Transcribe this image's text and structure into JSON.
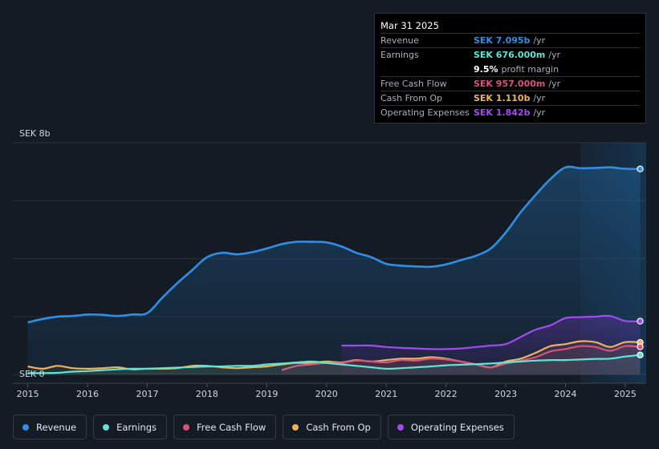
{
  "tooltip": {
    "date": "Mar 31 2025",
    "rows": [
      {
        "label": "Revenue",
        "value": "SEK 7.095b",
        "unit": "/yr",
        "color": "#2f8fe8"
      },
      {
        "label": "Earnings",
        "value": "SEK 676.000m",
        "unit": "/yr",
        "color": "#5ee5d6"
      },
      {
        "label": "",
        "value": "9.5%",
        "unit": "profit margin",
        "color": "#ffffff"
      },
      {
        "label": "Free Cash Flow",
        "value": "SEK 957.000m",
        "unit": "/yr",
        "color": "#d9527c"
      },
      {
        "label": "Cash From Op",
        "value": "SEK 1.110b",
        "unit": "/yr",
        "color": "#efb25d"
      },
      {
        "label": "Operating Expenses",
        "value": "SEK 1.842b",
        "unit": "/yr",
        "color": "#a14bf0"
      }
    ]
  },
  "legend": [
    {
      "label": "Revenue",
      "color": "#2f8fe8"
    },
    {
      "label": "Earnings",
      "color": "#5ee5d6"
    },
    {
      "label": "Free Cash Flow",
      "color": "#d9527c"
    },
    {
      "label": "Cash From Op",
      "color": "#efb25d"
    },
    {
      "label": "Operating Expenses",
      "color": "#a14bf0"
    }
  ],
  "chart_data": {
    "type": "area",
    "title": "",
    "xlabel": "",
    "ylabel": "",
    "y_top_label": "SEK 8b",
    "y_zero_label": "SEK 0",
    "xlim": [
      2014.75,
      2025.35
    ],
    "ylim": [
      -0.3,
      8
    ],
    "x_ticks": [
      2015,
      2016,
      2017,
      2018,
      2019,
      2020,
      2021,
      2022,
      2023,
      2024,
      2025
    ],
    "x_tick_labels": [
      "2015",
      "2016",
      "2017",
      "2018",
      "2019",
      "2020",
      "2021",
      "2022",
      "2023",
      "2024",
      "2025"
    ],
    "forecast_start": 2024.25,
    "series": [
      {
        "name": "Revenue",
        "color": "#2f8fe8",
        "x": [
          2015.0,
          2015.25,
          2015.5,
          2015.75,
          2016.0,
          2016.25,
          2016.5,
          2016.75,
          2017.0,
          2017.25,
          2017.5,
          2017.75,
          2018.0,
          2018.25,
          2018.5,
          2018.75,
          2019.0,
          2019.25,
          2019.5,
          2019.75,
          2020.0,
          2020.25,
          2020.5,
          2020.75,
          2021.0,
          2021.25,
          2021.5,
          2021.75,
          2022.0,
          2022.25,
          2022.5,
          2022.75,
          2023.0,
          2023.25,
          2023.5,
          2023.75,
          2024.0,
          2024.25,
          2024.5,
          2024.75,
          2025.0,
          2025.25
        ],
        "values": [
          1.8,
          1.92,
          2.0,
          2.02,
          2.07,
          2.06,
          2.02,
          2.07,
          2.12,
          2.65,
          3.15,
          3.6,
          4.05,
          4.2,
          4.15,
          4.22,
          4.35,
          4.5,
          4.58,
          4.58,
          4.56,
          4.42,
          4.2,
          4.05,
          3.82,
          3.76,
          3.73,
          3.72,
          3.8,
          3.95,
          4.1,
          4.35,
          4.9,
          5.6,
          6.2,
          6.75,
          7.15,
          7.12,
          7.13,
          7.15,
          7.1,
          7.095
        ]
      },
      {
        "name": "Operating Expenses",
        "color": "#a14bf0",
        "x": [
          2020.25,
          2020.5,
          2020.75,
          2021.0,
          2021.25,
          2021.5,
          2021.75,
          2022.0,
          2022.25,
          2022.5,
          2022.75,
          2023.0,
          2023.25,
          2023.5,
          2023.75,
          2024.0,
          2024.25,
          2024.5,
          2024.75,
          2025.0,
          2025.25
        ],
        "values": [
          1.0,
          1.0,
          1.0,
          0.95,
          0.92,
          0.9,
          0.88,
          0.88,
          0.9,
          0.95,
          1.0,
          1.05,
          1.3,
          1.55,
          1.7,
          1.95,
          1.98,
          2.0,
          2.02,
          1.85,
          1.842
        ]
      },
      {
        "name": "Cash From Op",
        "color": "#efb25d",
        "x": [
          2015.0,
          2015.25,
          2015.5,
          2015.75,
          2016.0,
          2016.25,
          2016.5,
          2016.75,
          2017.0,
          2017.25,
          2017.5,
          2017.75,
          2018.0,
          2018.25,
          2018.5,
          2018.75,
          2019.0,
          2019.25,
          2019.5,
          2019.75,
          2020.0,
          2020.25,
          2020.5,
          2020.75,
          2021.0,
          2021.25,
          2021.5,
          2021.75,
          2022.0,
          2022.25,
          2022.5,
          2022.75,
          2023.0,
          2023.25,
          2023.5,
          2023.75,
          2024.0,
          2024.25,
          2024.5,
          2024.75,
          2025.0,
          2025.25
        ],
        "values": [
          0.28,
          0.2,
          0.3,
          0.22,
          0.2,
          0.22,
          0.25,
          0.18,
          0.2,
          0.2,
          0.22,
          0.3,
          0.3,
          0.25,
          0.22,
          0.25,
          0.28,
          0.35,
          0.4,
          0.4,
          0.45,
          0.42,
          0.5,
          0.45,
          0.5,
          0.55,
          0.55,
          0.6,
          0.55,
          0.45,
          0.35,
          0.25,
          0.45,
          0.55,
          0.75,
          0.98,
          1.05,
          1.15,
          1.12,
          0.95,
          1.12,
          1.11
        ]
      },
      {
        "name": "Free Cash Flow",
        "color": "#d9527c",
        "x": [
          2019.25,
          2019.5,
          2019.75,
          2020.0,
          2020.25,
          2020.5,
          2020.75,
          2021.0,
          2021.25,
          2021.5,
          2021.75,
          2022.0,
          2022.25,
          2022.5,
          2022.75,
          2023.0,
          2023.25,
          2023.5,
          2023.75,
          2024.0,
          2024.25,
          2024.5,
          2024.75,
          2025.0,
          2025.25
        ],
        "values": [
          0.15,
          0.3,
          0.35,
          0.4,
          0.4,
          0.48,
          0.45,
          0.42,
          0.5,
          0.48,
          0.55,
          0.52,
          0.45,
          0.35,
          0.25,
          0.38,
          0.48,
          0.6,
          0.8,
          0.88,
          0.98,
          0.95,
          0.82,
          0.98,
          0.957
        ]
      },
      {
        "name": "Earnings",
        "color": "#5ee5d6",
        "x": [
          2015.0,
          2015.25,
          2015.5,
          2015.75,
          2016.0,
          2016.25,
          2016.5,
          2016.75,
          2017.0,
          2017.25,
          2017.5,
          2017.75,
          2018.0,
          2018.25,
          2018.5,
          2018.75,
          2019.0,
          2019.25,
          2019.5,
          2019.75,
          2020.0,
          2020.25,
          2020.5,
          2020.75,
          2021.0,
          2021.25,
          2021.5,
          2021.75,
          2022.0,
          2022.25,
          2022.5,
          2022.75,
          2023.0,
          2023.25,
          2023.5,
          2023.75,
          2024.0,
          2024.25,
          2024.5,
          2024.75,
          2025.0,
          2025.25
        ],
        "values": [
          0.05,
          0.05,
          0.06,
          0.1,
          0.12,
          0.15,
          0.18,
          0.2,
          0.2,
          0.22,
          0.24,
          0.26,
          0.28,
          0.28,
          0.3,
          0.3,
          0.35,
          0.38,
          0.42,
          0.45,
          0.4,
          0.35,
          0.3,
          0.25,
          0.2,
          0.22,
          0.25,
          0.28,
          0.32,
          0.34,
          0.36,
          0.38,
          0.42,
          0.45,
          0.48,
          0.5,
          0.5,
          0.52,
          0.54,
          0.55,
          0.62,
          0.676
        ]
      }
    ]
  }
}
